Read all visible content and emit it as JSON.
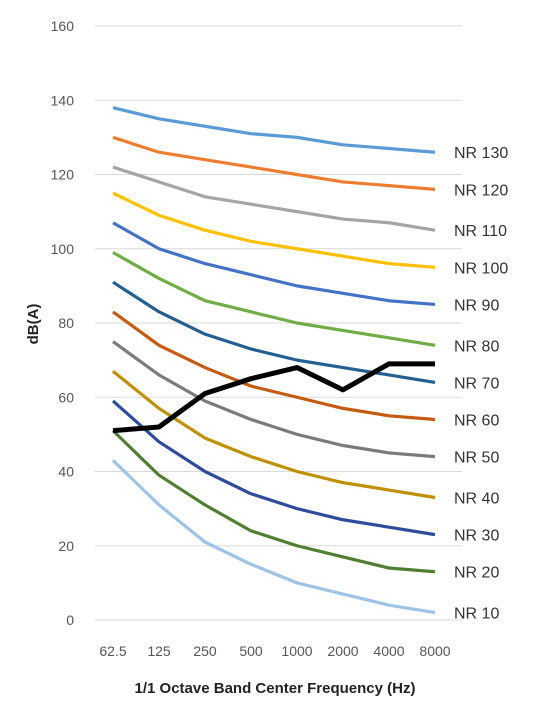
{
  "chart_data": {
    "type": "line",
    "title": "",
    "xlabel": "1/1 Octave Band Center Frequency (Hz)",
    "ylabel": "dB(A)",
    "categories": [
      "62.5",
      "125",
      "250",
      "500",
      "1000",
      "2000",
      "4000",
      "8000"
    ],
    "ylim": [
      0,
      160
    ],
    "yticks": [
      0,
      20,
      40,
      60,
      80,
      100,
      120,
      140,
      160
    ],
    "grid": true,
    "legend": "inline-right",
    "series": [
      {
        "name": "NR 130",
        "color": "#5b9bd5",
        "values": [
          138,
          135,
          133,
          131,
          130,
          128,
          127,
          126
        ]
      },
      {
        "name": "NR 120",
        "color": "#ed7d31",
        "values": [
          130,
          126,
          124,
          122,
          120,
          118,
          117,
          116
        ]
      },
      {
        "name": "NR 110",
        "color": "#a5a5a5",
        "values": [
          122,
          118,
          114,
          112,
          110,
          108,
          107,
          105
        ]
      },
      {
        "name": "NR 100",
        "color": "#ffc000",
        "values": [
          115,
          109,
          105,
          102,
          100,
          98,
          96,
          95
        ]
      },
      {
        "name": "NR 90",
        "color": "#4472c4",
        "values": [
          107,
          100,
          96,
          93,
          90,
          88,
          86,
          85
        ]
      },
      {
        "name": "NR 80",
        "color": "#70ad47",
        "values": [
          99,
          92,
          86,
          83,
          80,
          78,
          76,
          74
        ]
      },
      {
        "name": "NR 70",
        "color": "#255e91",
        "values": [
          91,
          83,
          77,
          73,
          70,
          68,
          66,
          64
        ]
      },
      {
        "name": "NR 60",
        "color": "#c55a11",
        "values": [
          83,
          74,
          68,
          63,
          60,
          57,
          55,
          54
        ]
      },
      {
        "name": "NR 50",
        "color": "#7b7b7b",
        "values": [
          75,
          66,
          59,
          54,
          50,
          47,
          45,
          44
        ]
      },
      {
        "name": "NR 40",
        "color": "#bf9000",
        "values": [
          67,
          57,
          49,
          44,
          40,
          37,
          35,
          33
        ]
      },
      {
        "name": "NR 30",
        "color": "#2f4b9c",
        "values": [
          59,
          48,
          40,
          34,
          30,
          27,
          25,
          23
        ]
      },
      {
        "name": "NR 20",
        "color": "#507e32",
        "values": [
          51,
          39,
          31,
          24,
          20,
          17,
          14,
          13
        ]
      },
      {
        "name": "NR 10",
        "color": "#9dc3e6",
        "values": [
          43,
          31,
          21,
          15,
          10,
          7,
          4,
          2
        ]
      },
      {
        "name": "",
        "color": "#000000",
        "values": [
          51,
          52,
          61,
          65,
          68,
          62,
          69,
          69
        ]
      }
    ]
  }
}
